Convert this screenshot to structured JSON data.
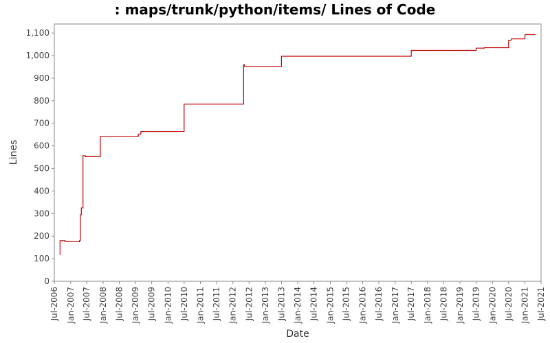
{
  "chart_data": {
    "type": "line",
    "title": ": maps/trunk/python/items/ Lines of Code",
    "xlabel": "Date",
    "ylabel": "Lines",
    "grid": false,
    "legend": "none",
    "step": true,
    "line_color": "#c00000",
    "xlim": [
      "2006-07-01",
      "2021-07-01"
    ],
    "ylim": [
      0,
      1140
    ],
    "y_ticks": [
      0,
      100,
      200,
      300,
      400,
      500,
      600,
      700,
      800,
      900,
      1000,
      1100
    ],
    "y_tick_labels": [
      "0",
      "100",
      "200",
      "300",
      "400",
      "500",
      "600",
      "700",
      "800",
      "900",
      "1,000",
      "1,100"
    ],
    "x_ticks": [
      {
        "date": "2006-07-01",
        "label": "Jul-2006"
      },
      {
        "date": "2007-01-01",
        "label": "Jan-2007"
      },
      {
        "date": "2007-07-01",
        "label": "Jul-2007"
      },
      {
        "date": "2008-01-01",
        "label": "Jan-2008"
      },
      {
        "date": "2008-07-01",
        "label": "Jul-2008"
      },
      {
        "date": "2009-01-01",
        "label": "Jan-2009"
      },
      {
        "date": "2009-07-01",
        "label": "Jul-2009"
      },
      {
        "date": "2010-01-01",
        "label": "Jan-2010"
      },
      {
        "date": "2010-07-01",
        "label": "Jul-2010"
      },
      {
        "date": "2011-01-01",
        "label": "Jan-2011"
      },
      {
        "date": "2011-07-01",
        "label": "Jul-2011"
      },
      {
        "date": "2012-01-01",
        "label": "Jan-2012"
      },
      {
        "date": "2012-07-01",
        "label": "Jul-2012"
      },
      {
        "date": "2013-01-01",
        "label": "Jan-2013"
      },
      {
        "date": "2013-07-01",
        "label": "Jul-2013"
      },
      {
        "date": "2014-01-01",
        "label": "Jan-2014"
      },
      {
        "date": "2014-07-01",
        "label": "Jul-2014"
      },
      {
        "date": "2015-01-01",
        "label": "Jan-2015"
      },
      {
        "date": "2015-07-01",
        "label": "Jul-2015"
      },
      {
        "date": "2016-01-01",
        "label": "Jan-2016"
      },
      {
        "date": "2016-07-01",
        "label": "Jul-2016"
      },
      {
        "date": "2017-01-01",
        "label": "Jan-2017"
      },
      {
        "date": "2017-07-01",
        "label": "Jul-2017"
      },
      {
        "date": "2018-01-01",
        "label": "Jan-2018"
      },
      {
        "date": "2018-07-01",
        "label": "Jul-2018"
      },
      {
        "date": "2019-01-01",
        "label": "Jan-2019"
      },
      {
        "date": "2019-07-01",
        "label": "Jul-2019"
      },
      {
        "date": "2020-01-01",
        "label": "Jan-2020"
      },
      {
        "date": "2020-07-01",
        "label": "Jul-2020"
      },
      {
        "date": "2021-01-01",
        "label": "Jan-2021"
      },
      {
        "date": "2021-07-01",
        "label": "Jul-2021"
      }
    ],
    "series": [
      {
        "points": [
          {
            "x": "2006-09-01",
            "y": 118
          },
          {
            "x": "2006-09-03",
            "y": 180
          },
          {
            "x": "2006-11-01",
            "y": 175
          },
          {
            "x": "2007-04-10",
            "y": 180
          },
          {
            "x": "2007-04-20",
            "y": 295
          },
          {
            "x": "2007-05-01",
            "y": 325
          },
          {
            "x": "2007-05-20",
            "y": 557
          },
          {
            "x": "2007-06-15",
            "y": 552
          },
          {
            "x": "2007-12-01",
            "y": 642
          },
          {
            "x": "2009-02-01",
            "y": 652
          },
          {
            "x": "2009-03-01",
            "y": 664
          },
          {
            "x": "2010-07-01",
            "y": 785
          },
          {
            "x": "2012-05-01",
            "y": 960
          },
          {
            "x": "2012-05-10",
            "y": 952
          },
          {
            "x": "2013-07-01",
            "y": 997
          },
          {
            "x": "2017-07-01",
            "y": 1023
          },
          {
            "x": "2019-07-01",
            "y": 1033
          },
          {
            "x": "2019-10-01",
            "y": 1035
          },
          {
            "x": "2020-07-01",
            "y": 1068
          },
          {
            "x": "2020-08-01",
            "y": 1074
          },
          {
            "x": "2021-01-01",
            "y": 1093
          },
          {
            "x": "2021-05-01",
            "y": 1093
          }
        ]
      }
    ]
  }
}
